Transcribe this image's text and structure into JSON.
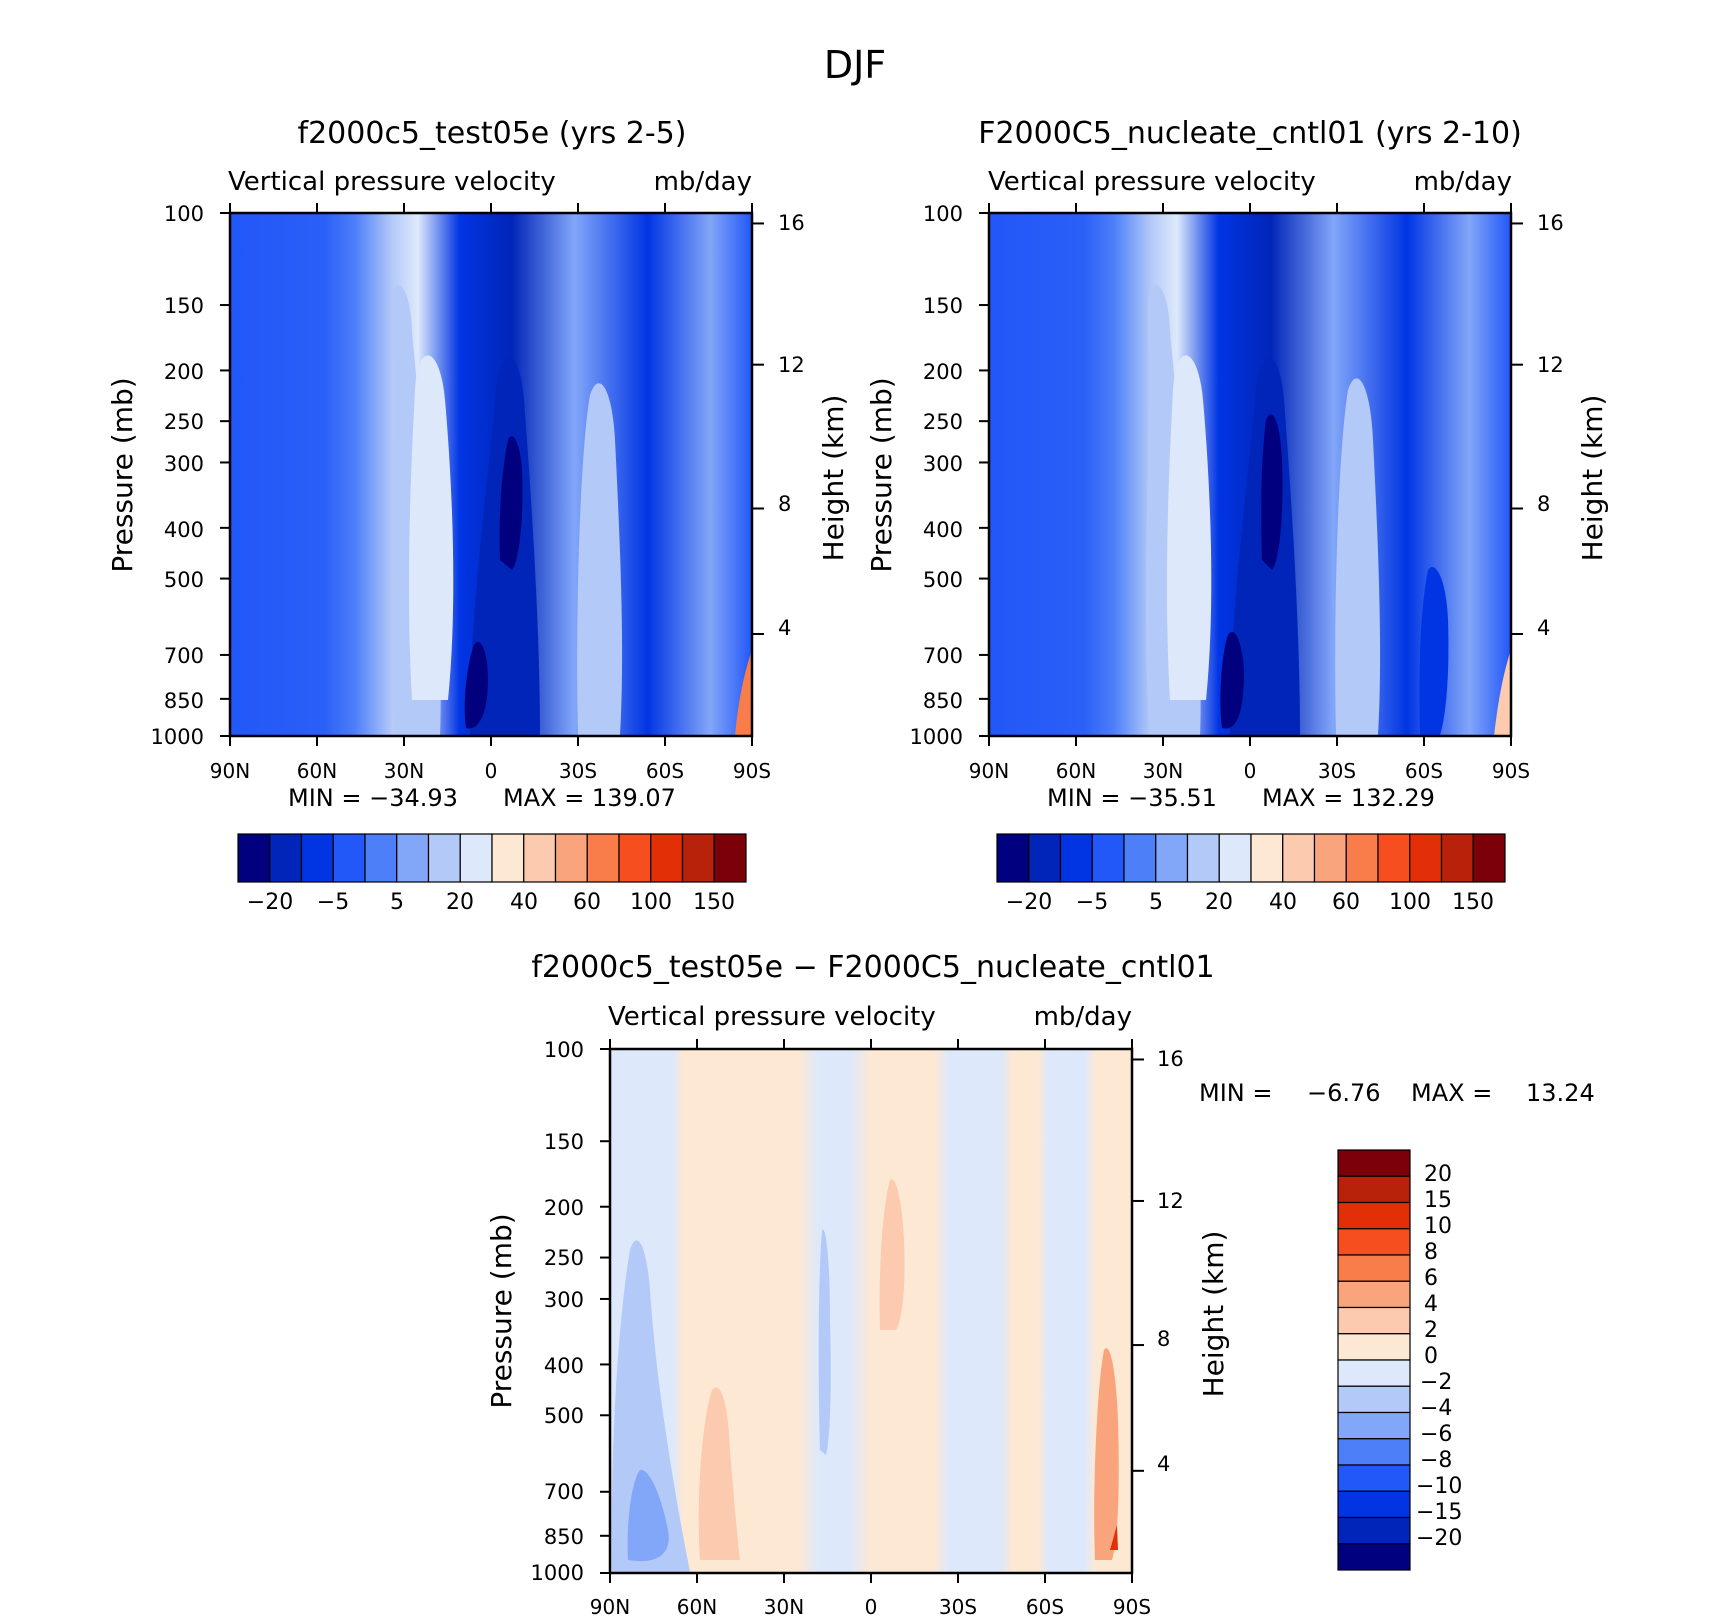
{
  "figure": {
    "title": "DJF"
  },
  "chart_data": [
    {
      "type": "heatmap",
      "title": "f2000c5_test05e (yrs 2-5)",
      "subtitle_left": "Vertical pressure velocity",
      "subtitle_right": "mb/day",
      "ylabel": "Pressure (mb)",
      "ylabel_right": "Height (km)",
      "x_ticks": [
        "90N",
        "60N",
        "30N",
        "0",
        "30S",
        "60S",
        "90S"
      ],
      "y_ticks": [
        "100",
        "150",
        "200",
        "250",
        "300",
        "400",
        "500",
        "700",
        "850",
        "1000"
      ],
      "y_ticks_right": [
        "16",
        "12",
        "8",
        "4"
      ],
      "min_text": "MIN = −34.93",
      "max_text": "MAX = 139.07",
      "colorbar_labels": [
        "−20",
        "−5",
        "5",
        "20",
        "40",
        "60",
        "100",
        "150"
      ],
      "colorbar_colors": [
        "#01007f",
        "#0125b8",
        "#0135e4",
        "#2257f8",
        "#4d7ff8",
        "#82a6f8",
        "#b3c9f8",
        "#dde9fb",
        "#fde8d4",
        "#fccaae",
        "#f9a47c",
        "#f97c4b",
        "#f74e1f",
        "#e32f08",
        "#b8220a",
        "#7b0009"
      ],
      "max_value": 139.07,
      "min_value": -34.93
    },
    {
      "type": "heatmap",
      "title": "F2000C5_nucleate_cntl01 (yrs 2-10)",
      "subtitle_left": "Vertical pressure velocity",
      "subtitle_right": "mb/day",
      "ylabel": "Pressure (mb)",
      "ylabel_right": "Height (km)",
      "x_ticks": [
        "90N",
        "60N",
        "30N",
        "0",
        "30S",
        "60S",
        "90S"
      ],
      "y_ticks": [
        "100",
        "150",
        "200",
        "250",
        "300",
        "400",
        "500",
        "700",
        "850",
        "1000"
      ],
      "y_ticks_right": [
        "16",
        "12",
        "8",
        "4"
      ],
      "min_text": "MIN = −35.51",
      "max_text": "MAX = 132.29",
      "colorbar_labels": [
        "−20",
        "−5",
        "5",
        "20",
        "40",
        "60",
        "100",
        "150"
      ],
      "colorbar_colors": [
        "#01007f",
        "#0125b8",
        "#0135e4",
        "#2257f8",
        "#4d7ff8",
        "#82a6f8",
        "#b3c9f8",
        "#dde9fb",
        "#fde8d4",
        "#fccaae",
        "#f9a47c",
        "#f97c4b",
        "#f74e1f",
        "#e32f08",
        "#b8220a",
        "#7b0009"
      ],
      "max_value": 132.29,
      "min_value": -35.51
    },
    {
      "type": "heatmap",
      "title": "f2000c5_test05e − F2000C5_nucleate_cntl01",
      "subtitle_left": "Vertical pressure velocity",
      "subtitle_right": "mb/day",
      "ylabel": "Pressure (mb)",
      "ylabel_right": "Height (km)",
      "x_ticks": [
        "90N",
        "60N",
        "30N",
        "0",
        "30S",
        "60S",
        "90S"
      ],
      "y_ticks": [
        "100",
        "150",
        "200",
        "250",
        "300",
        "400",
        "500",
        "700",
        "850",
        "1000"
      ],
      "y_ticks_right": [
        "16",
        "12",
        "8",
        "4"
      ],
      "min_label": "MIN =",
      "min_val": "−6.76",
      "max_label": "MAX =",
      "max_val": "13.24",
      "colorbar_labels": [
        "20",
        "15",
        "10",
        "8",
        "6",
        "4",
        "2",
        "0",
        "−2",
        "−4",
        "−6",
        "−8",
        "−10",
        "−15",
        "−20"
      ],
      "colorbar_colors": [
        "#7b0009",
        "#b8220a",
        "#e32f08",
        "#f74e1f",
        "#f97c4b",
        "#f9a47c",
        "#fccaae",
        "#fde8d4",
        "#dde9fb",
        "#b3c9f8",
        "#82a6f8",
        "#4d7ff8",
        "#2257f8",
        "#0135e4",
        "#0125b8",
        "#01007f"
      ],
      "max_value": 13.24,
      "min_value": -6.76
    }
  ]
}
